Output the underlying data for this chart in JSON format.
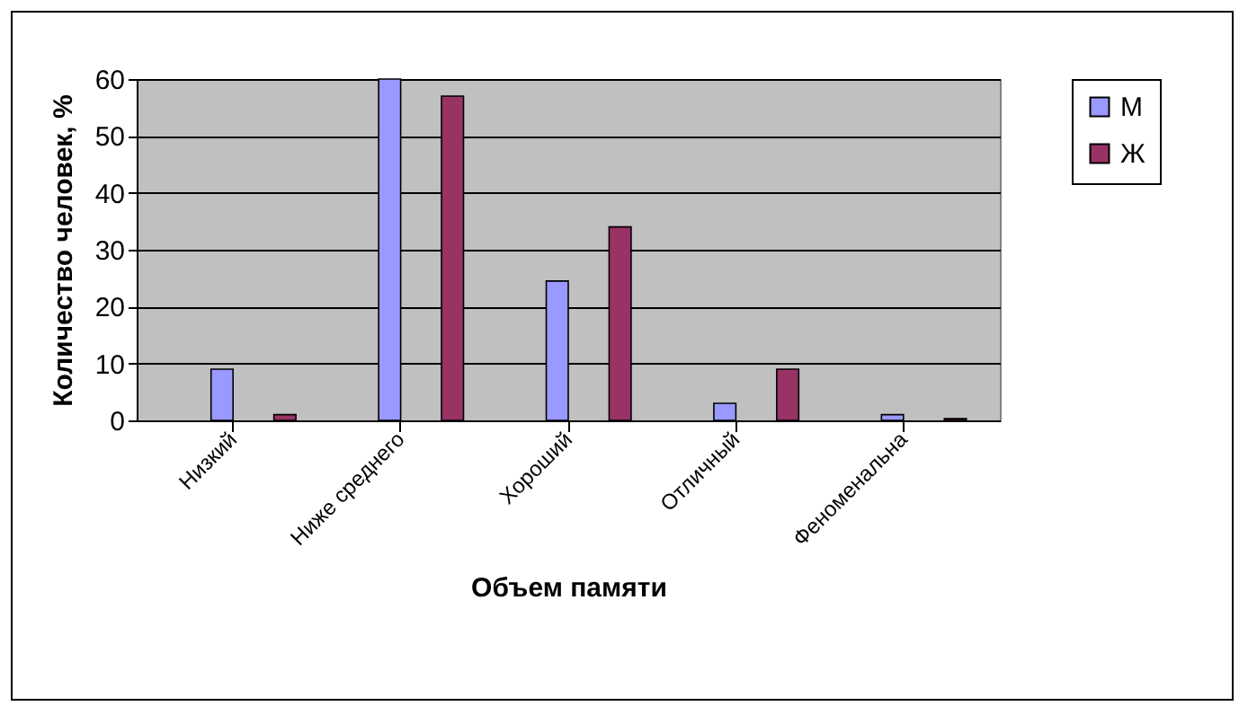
{
  "chart_data": {
    "type": "bar",
    "xlabel": "Объем памяти",
    "ylabel": "Количество человек, %",
    "categories": [
      "Низкий",
      "Ниже среднего",
      "Хороший",
      "Отличный",
      "Феноменальна"
    ],
    "series": [
      {
        "name": "М",
        "color": "#9999ff",
        "values": [
          9,
          60,
          24.5,
          3,
          1
        ]
      },
      {
        "name": "Ж",
        "color": "#993366",
        "values": [
          1,
          57,
          34,
          9,
          0.3
        ]
      }
    ],
    "ylim": [
      0,
      60
    ],
    "yticks": [
      0,
      10,
      20,
      30,
      40,
      50,
      60
    ],
    "grid": "y",
    "legend": "right"
  }
}
